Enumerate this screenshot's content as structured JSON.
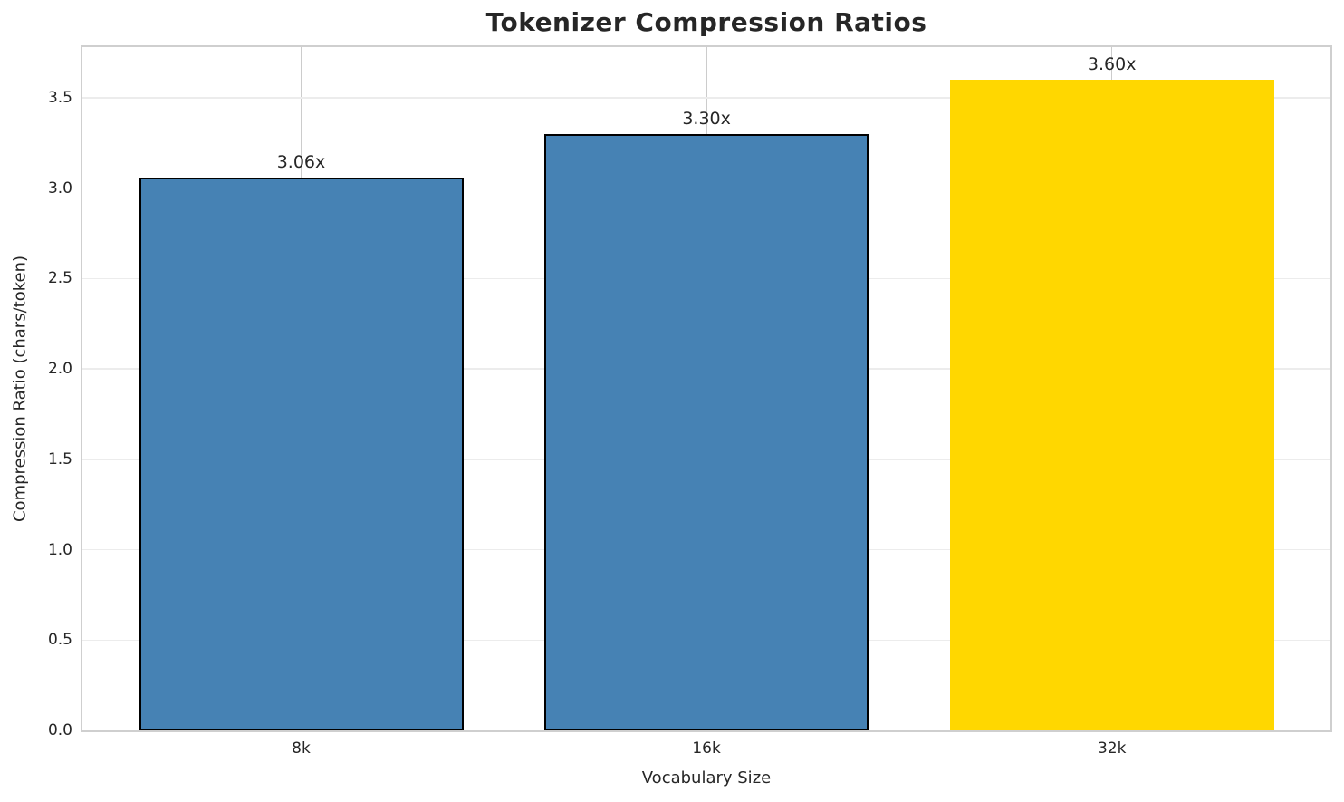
{
  "chart_data": {
    "type": "bar",
    "title": "Tokenizer Compression Ratios",
    "xlabel": "Vocabulary Size",
    "ylabel": "Compression Ratio (chars/token)",
    "categories": [
      "8k",
      "16k",
      "32k"
    ],
    "values": [
      3.06,
      3.3,
      3.6
    ],
    "bar_labels": [
      "3.06x",
      "3.30x",
      "3.60x"
    ],
    "bar_colors": [
      "#4682b4",
      "#4682b4",
      "#ffd700"
    ],
    "bar_edge_colors": [
      "#000000",
      "#000000",
      "none"
    ],
    "ylim": [
      0,
      3.78
    ],
    "yticks": [
      0.0,
      0.5,
      1.0,
      1.5,
      2.0,
      2.5,
      3.0,
      3.5
    ],
    "ytick_labels": [
      "0.0",
      "0.5",
      "1.0",
      "1.5",
      "2.0",
      "2.5",
      "3.0",
      "3.5"
    ],
    "grid": true,
    "grid_axis": "both",
    "legend": "none",
    "background_color": "#ffffff",
    "text_color": "#262626",
    "spine_color": "#cfcfcf"
  }
}
